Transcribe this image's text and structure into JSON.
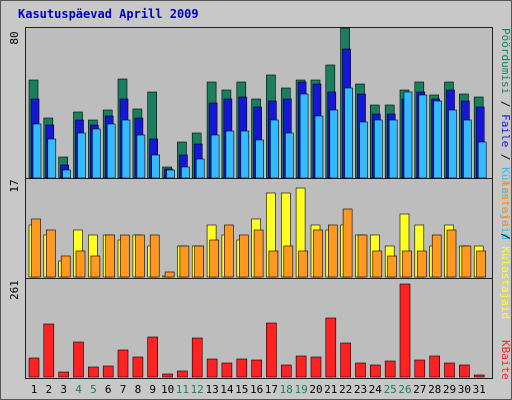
{
  "chart_data": [
    {
      "type": "bar",
      "title": "Kasutuspäevad Aprill 2009",
      "categories": [
        "1",
        "2",
        "3",
        "4",
        "5",
        "6",
        "7",
        "8",
        "9",
        "10",
        "11",
        "12",
        "13",
        "14",
        "15",
        "16",
        "17",
        "18",
        "19",
        "20",
        "21",
        "22",
        "23",
        "24",
        "25",
        "26",
        "27",
        "28",
        "29",
        "30",
        "31"
      ],
      "weekend_days": [
        "4",
        "5",
        "11",
        "12",
        "18",
        "19",
        "25",
        "26"
      ],
      "ylim": [
        0,
        80
      ],
      "ytick_label": "80",
      "legend": [
        "Pöördumisi",
        "Faile",
        "Külastajaid"
      ],
      "series": [
        {
          "name": "Pöördumisi",
          "color": "#1a7f5f",
          "values": [
            52,
            32,
            11,
            35,
            31,
            36,
            53,
            37,
            46,
            6,
            19,
            24,
            51,
            47,
            51,
            42,
            55,
            48,
            52,
            52,
            60,
            80,
            50,
            39,
            39,
            47,
            51,
            44,
            51,
            45,
            43
          ]
        },
        {
          "name": "Faile",
          "color": "#1616d8",
          "values": [
            42,
            28,
            7,
            31,
            28,
            33,
            42,
            32,
            21,
            5,
            12,
            18,
            40,
            42,
            43,
            38,
            41,
            42,
            51,
            50,
            46,
            69,
            45,
            34,
            34,
            42,
            46,
            42,
            47,
            41,
            38
          ]
        },
        {
          "name": "Külastajaid",
          "color": "#33bbff",
          "values": [
            29,
            21,
            4,
            24,
            26,
            29,
            31,
            23,
            12,
            4,
            6,
            10,
            23,
            25,
            25,
            20,
            31,
            24,
            45,
            33,
            36,
            48,
            30,
            31,
            31,
            46,
            44,
            41,
            36,
            31,
            19
          ]
        }
      ]
    },
    {
      "type": "bar",
      "categories": [
        "1",
        "2",
        "3",
        "4",
        "5",
        "6",
        "7",
        "8",
        "9",
        "10",
        "11",
        "12",
        "13",
        "14",
        "15",
        "16",
        "17",
        "18",
        "19",
        "20",
        "21",
        "22",
        "23",
        "24",
        "25",
        "26",
        "27",
        "28",
        "29",
        "30",
        "31"
      ],
      "ylim": [
        0,
        17
      ],
      "ytick_label": "17",
      "legend": [
        "Külastajaid",
        "Aruteid"
      ],
      "series": [
        {
          "name": "Külastajaid",
          "color": "#ffff22",
          "values": [
            10,
            8,
            3,
            9,
            8,
            8,
            7,
            8,
            6,
            0,
            6,
            6,
            10,
            8,
            7,
            11,
            16,
            16,
            17,
            10,
            9,
            10,
            8,
            8,
            6,
            12,
            10,
            6,
            10,
            6,
            6
          ]
        },
        {
          "name": "Aruteid",
          "color": "#ff9922",
          "values": [
            11,
            9,
            4,
            5,
            4,
            8,
            8,
            8,
            8,
            1,
            6,
            6,
            7,
            10,
            8,
            9,
            5,
            6,
            5,
            9,
            10,
            13,
            8,
            5,
            4,
            5,
            5,
            8,
            9,
            6,
            5
          ]
        }
      ]
    },
    {
      "type": "bar",
      "categories": [
        "1",
        "2",
        "3",
        "4",
        "5",
        "6",
        "7",
        "8",
        "9",
        "10",
        "11",
        "12",
        "13",
        "14",
        "15",
        "16",
        "17",
        "18",
        "19",
        "20",
        "21",
        "22",
        "23",
        "24",
        "25",
        "26",
        "27",
        "28",
        "29",
        "30",
        "31"
      ],
      "ylim": [
        0,
        261
      ],
      "ytick_label": "261",
      "legend": [
        "KBaite"
      ],
      "series": [
        {
          "name": "KBaite",
          "color": "#ff2222",
          "values": [
            52,
            150,
            15,
            98,
            28,
            30,
            75,
            55,
            113,
            8,
            16,
            110,
            50,
            40,
            50,
            48,
            152,
            35,
            58,
            57,
            166,
            95,
            38,
            35,
            45,
            261,
            48,
            60,
            38,
            35,
            5
          ]
        }
      ]
    }
  ]
}
